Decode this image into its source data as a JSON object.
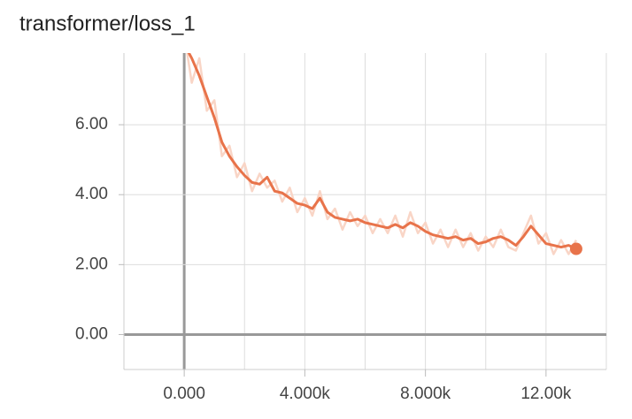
{
  "chart_data": {
    "type": "line",
    "title": "transformer/loss_1",
    "x": [
      0,
      250,
      500,
      750,
      1000,
      1250,
      1500,
      1750,
      2000,
      2250,
      2500,
      2750,
      3000,
      3250,
      3500,
      3750,
      4000,
      4250,
      4500,
      4750,
      5000,
      5250,
      5500,
      5750,
      6000,
      6250,
      6500,
      6750,
      7000,
      7250,
      7500,
      7750,
      8000,
      8250,
      8500,
      8750,
      9000,
      9250,
      9500,
      9750,
      10000,
      10250,
      10500,
      10750,
      11000,
      11250,
      11500,
      11750,
      12000,
      12250,
      12500,
      12750,
      13000
    ],
    "series": [
      {
        "color": "#f9d5c6",
        "values": [
          8.6,
          7.2,
          7.9,
          6.4,
          6.7,
          5.1,
          5.4,
          4.5,
          4.9,
          4.1,
          4.6,
          4.2,
          4.4,
          3.8,
          4.2,
          3.5,
          3.9,
          3.4,
          4.1,
          3.3,
          3.6,
          3.0,
          3.5,
          3.1,
          3.4,
          2.9,
          3.3,
          2.9,
          3.4,
          2.8,
          3.5,
          2.9,
          3.2,
          2.6,
          3.0,
          2.5,
          3.0,
          2.5,
          2.9,
          2.4,
          2.8,
          2.5,
          3.0,
          2.5,
          2.4,
          2.9,
          3.4,
          2.6,
          2.9,
          2.3,
          2.7,
          2.3,
          2.7
        ]
      },
      {
        "color": "#e8734a",
        "values": [
          8.3,
          7.9,
          7.4,
          6.8,
          6.2,
          5.5,
          5.1,
          4.8,
          4.55,
          4.35,
          4.3,
          4.5,
          4.1,
          4.05,
          3.9,
          3.75,
          3.7,
          3.6,
          3.9,
          3.5,
          3.35,
          3.3,
          3.25,
          3.3,
          3.2,
          3.15,
          3.1,
          3.05,
          3.15,
          3.05,
          3.2,
          3.1,
          2.95,
          2.85,
          2.8,
          2.75,
          2.8,
          2.7,
          2.75,
          2.6,
          2.65,
          2.75,
          2.8,
          2.7,
          2.55,
          2.8,
          3.1,
          2.85,
          2.6,
          2.55,
          2.5,
          2.55,
          2.45
        ]
      }
    ],
    "xlim": [
      -2000,
      14000
    ],
    "xticks": [
      {
        "value": 0,
        "label": "0.000"
      },
      {
        "value": 4000,
        "label": "4.000k"
      },
      {
        "value": 8000,
        "label": "8.000k"
      },
      {
        "value": 12000,
        "label": "12.00k"
      }
    ],
    "ylim": [
      -1.0,
      8.05
    ],
    "yticks": [
      {
        "value": 0,
        "label": "0.00"
      },
      {
        "value": 2,
        "label": "2.00"
      },
      {
        "value": 4,
        "label": "4.00"
      },
      {
        "value": 6,
        "label": "6.00"
      }
    ],
    "grid": true
  }
}
